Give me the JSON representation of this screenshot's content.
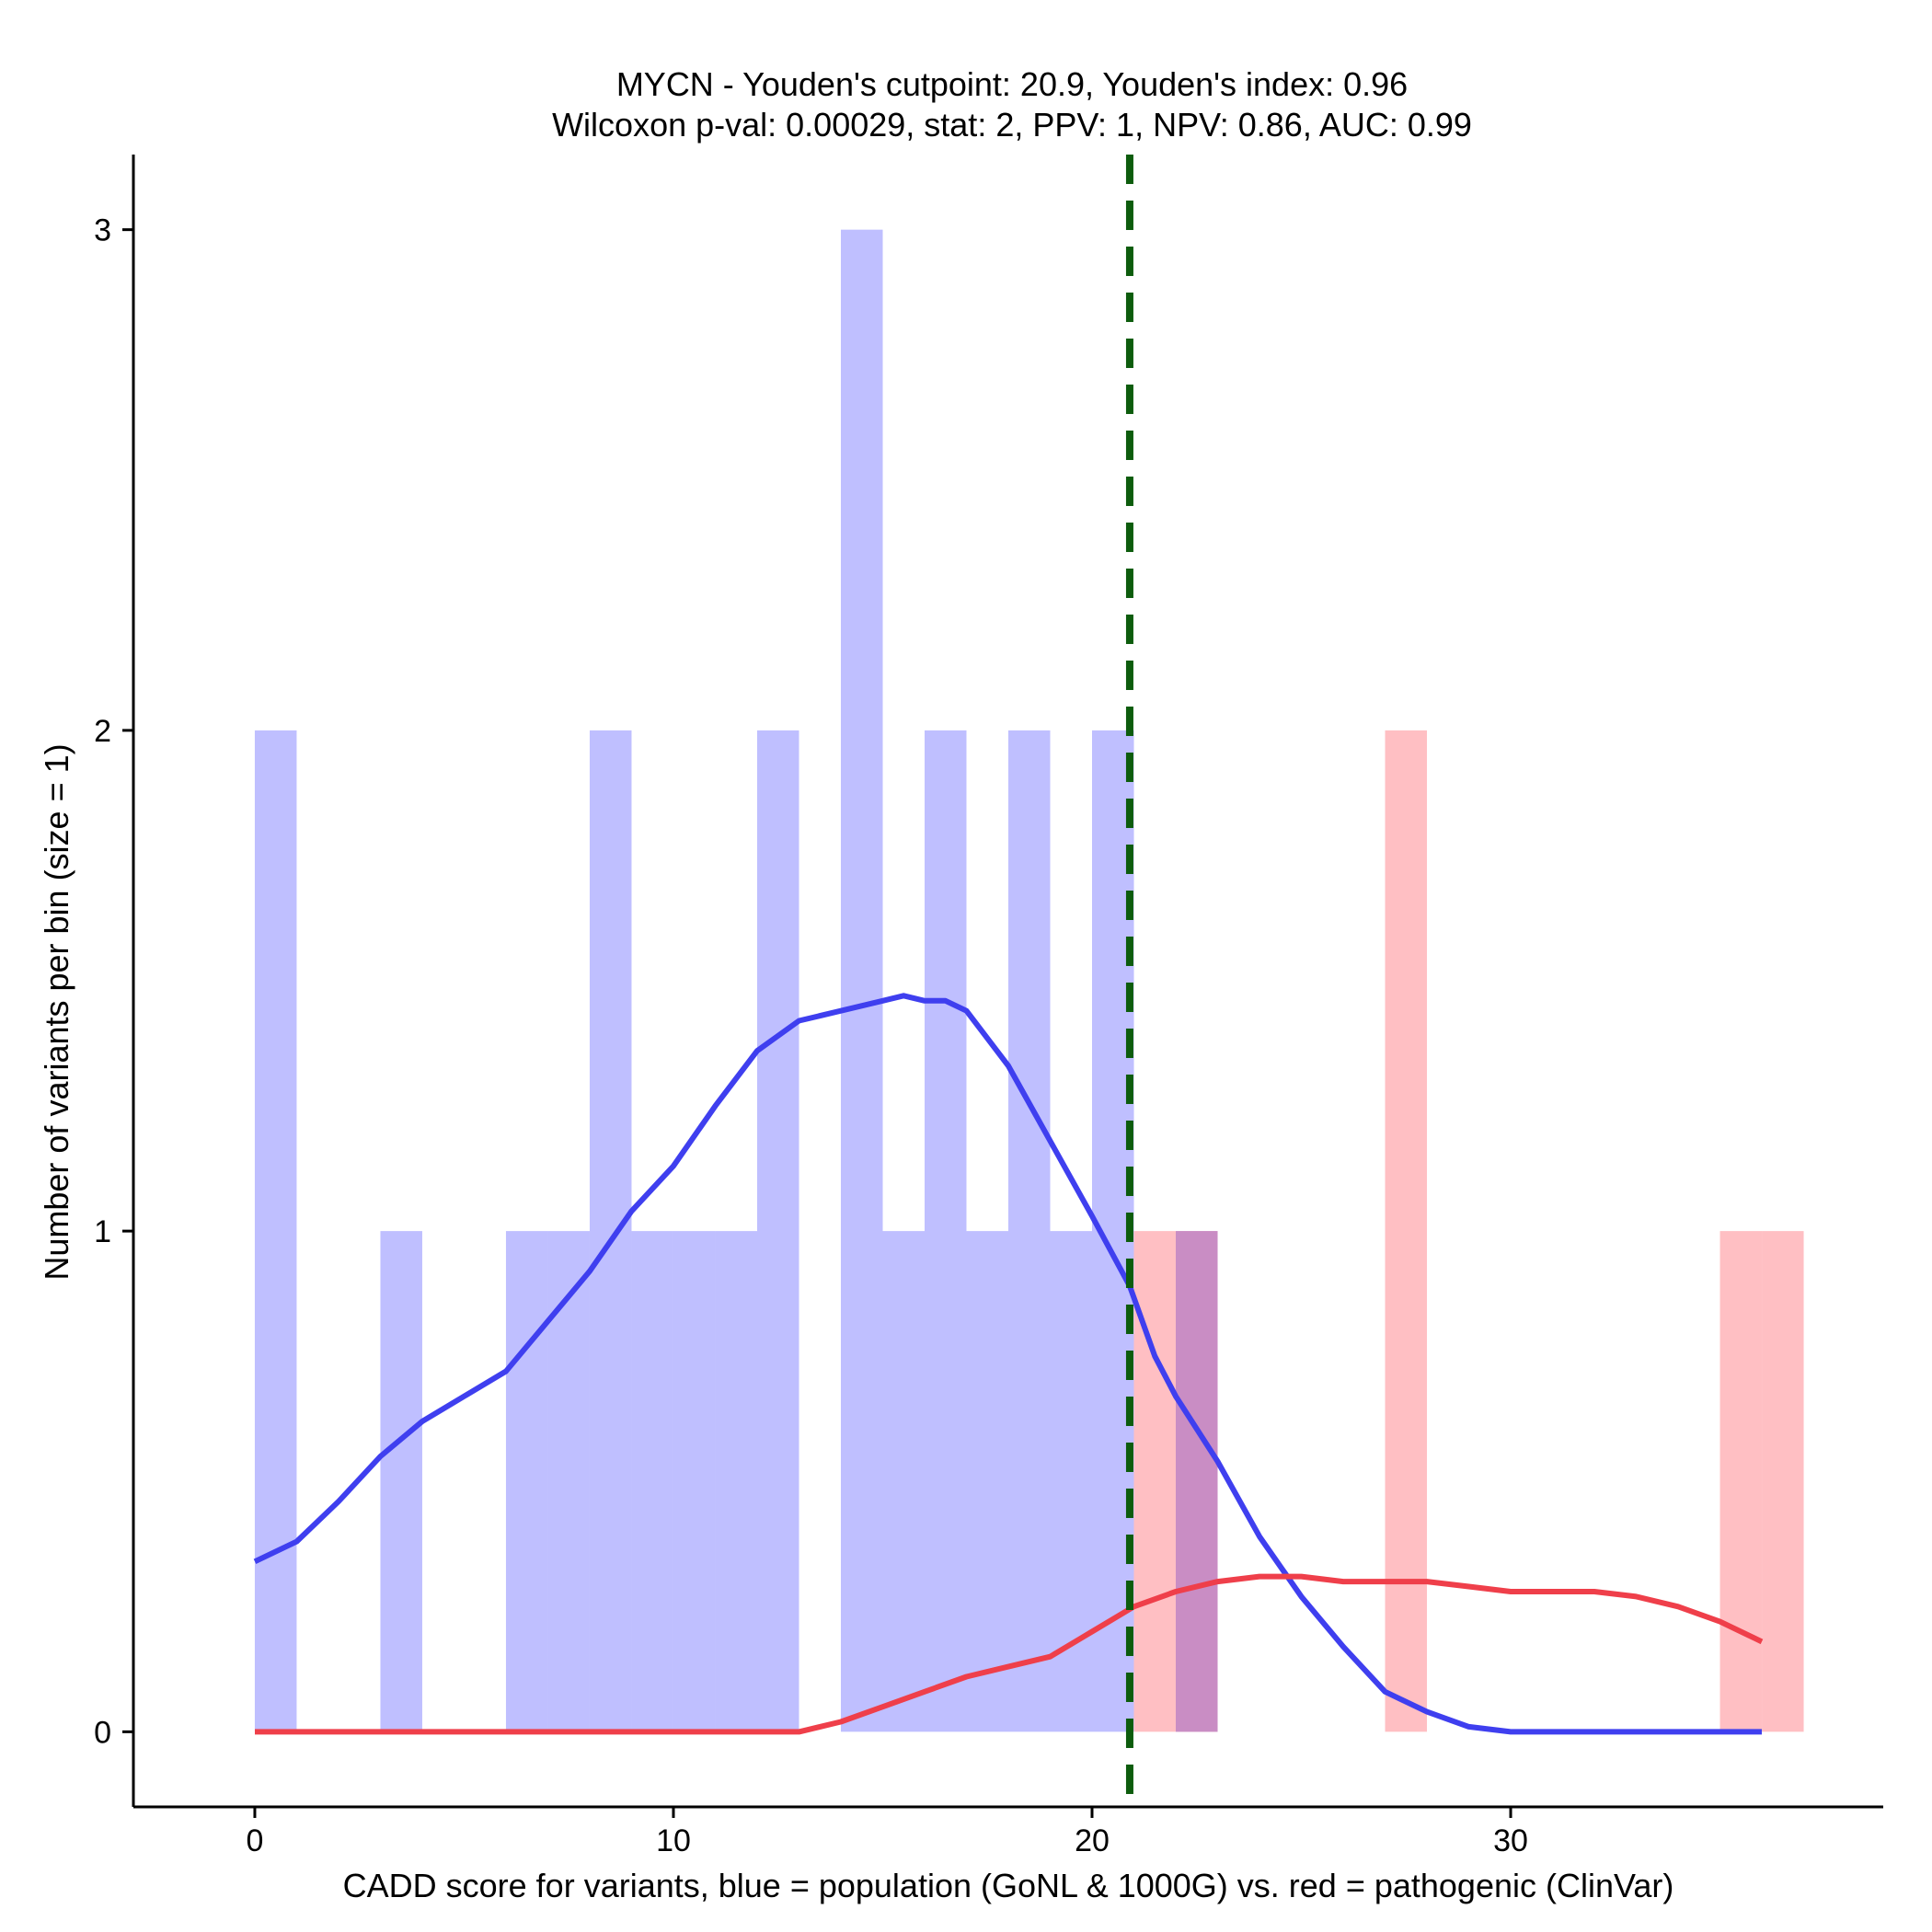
{
  "chart_data": {
    "type": "bar",
    "title_line1": "MYCN - Youden's cutpoint: 20.9, Youden's index: 0.96",
    "title_line2": "Wilcoxon p-val: 0.00029, stat: 2, PPV: 1, NPV: 0.86, AUC: 0.99",
    "xlabel": "CADD score for variants, blue = population (GoNL & 1000G) vs. red = pathogenic (ClinVar)",
    "ylabel": "Number of variants per bin (size = 1)",
    "xlim": [
      -2.9,
      38.9
    ],
    "ylim": [
      -0.15,
      3.15
    ],
    "x_ticks": [
      0,
      10,
      20,
      30
    ],
    "x_tick_labels": [
      "0",
      "10",
      "20",
      "30"
    ],
    "y_ticks": [
      0,
      1,
      2,
      3
    ],
    "y_tick_labels": [
      "0",
      "1",
      "2",
      "3"
    ],
    "bin_width": 1,
    "cutpoint": 20.9,
    "colors": {
      "population_bar": "#BFBFFF",
      "pathogenic_bar": "#FFBFC3",
      "overlap_bar": "#C98DC4",
      "population_line": "#3F3FEF",
      "pathogenic_line": "#EF3F4A",
      "cutpoint_line": "#0D5C0D"
    },
    "series": [
      {
        "name": "population (GoNL & 1000G)",
        "bins": [
          {
            "start": 0,
            "count": 2
          },
          {
            "start": 3,
            "count": 1
          },
          {
            "start": 6,
            "count": 1
          },
          {
            "start": 7,
            "count": 1
          },
          {
            "start": 8,
            "count": 2
          },
          {
            "start": 9,
            "count": 1
          },
          {
            "start": 10,
            "count": 1
          },
          {
            "start": 11,
            "count": 1
          },
          {
            "start": 12,
            "count": 2
          },
          {
            "start": 14,
            "count": 3
          },
          {
            "start": 15,
            "count": 1
          },
          {
            "start": 16,
            "count": 2
          },
          {
            "start": 17,
            "count": 1
          },
          {
            "start": 18,
            "count": 2
          },
          {
            "start": 19,
            "count": 1
          },
          {
            "start": 20,
            "count": 2
          },
          {
            "start": 22,
            "count": 1
          }
        ],
        "density_curve": {
          "x": [
            0,
            1,
            2,
            3,
            4,
            5,
            6,
            7,
            8,
            9,
            10,
            11,
            12,
            13,
            14,
            15,
            15.5,
            16,
            16.5,
            17,
            18,
            19,
            20,
            20.9,
            21.5,
            22,
            23,
            24,
            25,
            26,
            27,
            28,
            29,
            30,
            32,
            34,
            36
          ],
          "y": [
            0.34,
            0.38,
            0.46,
            0.55,
            0.62,
            0.67,
            0.72,
            0.82,
            0.92,
            1.04,
            1.13,
            1.25,
            1.36,
            1.42,
            1.44,
            1.46,
            1.47,
            1.46,
            1.46,
            1.44,
            1.33,
            1.18,
            1.03,
            0.89,
            0.75,
            0.67,
            0.54,
            0.39,
            0.27,
            0.17,
            0.08,
            0.04,
            0.01,
            0.0,
            0.0,
            0.0,
            0.0
          ]
        }
      },
      {
        "name": "pathogenic (ClinVar)",
        "bins": [
          {
            "start": 21,
            "count": 1
          },
          {
            "start": 22,
            "count": 1
          },
          {
            "start": 27,
            "count": 2
          },
          {
            "start": 35,
            "count": 1
          },
          {
            "start": 36,
            "count": 1
          }
        ],
        "density_curve": {
          "x": [
            0,
            5,
            10,
            13,
            14,
            15,
            16,
            17,
            18,
            19,
            20,
            21,
            22,
            23,
            24,
            25,
            26,
            27,
            28,
            29,
            30,
            31,
            32,
            33,
            34,
            35,
            36
          ],
          "y": [
            0.0,
            0.0,
            0.0,
            0.0,
            0.02,
            0.05,
            0.08,
            0.11,
            0.13,
            0.15,
            0.2,
            0.25,
            0.28,
            0.3,
            0.31,
            0.31,
            0.3,
            0.3,
            0.3,
            0.29,
            0.28,
            0.28,
            0.28,
            0.27,
            0.25,
            0.22,
            0.18
          ]
        }
      }
    ]
  }
}
